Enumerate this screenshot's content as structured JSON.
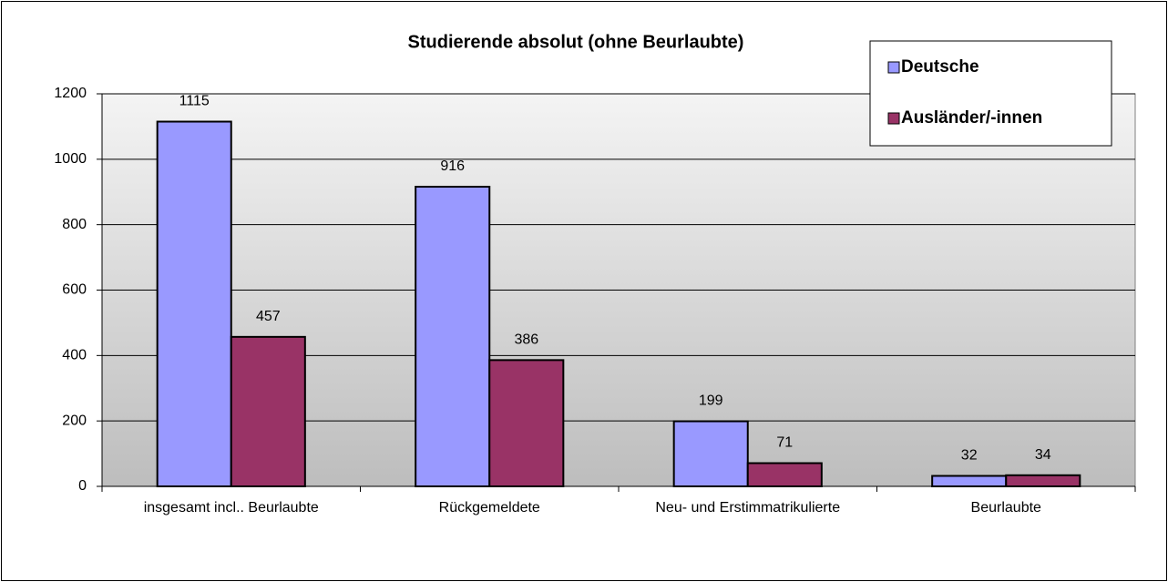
{
  "chart_data": {
    "type": "bar",
    "title": "Studierende absolut (ohne Beurlaubte)",
    "categories": [
      "insgesamt incl.. Beurlaubte",
      "Rückgemeldete",
      "Neu- und Erstimmatrikulierte",
      "Beurlaubte"
    ],
    "series": [
      {
        "name": "Deutsche",
        "color": "#9999ff",
        "values": [
          1115,
          916,
          199,
          32
        ]
      },
      {
        "name": "Ausländer/-innen",
        "color": "#993366",
        "values": [
          457,
          386,
          71,
          34
        ]
      }
    ],
    "ylim": [
      0,
      1200
    ],
    "yticks": [
      0,
      200,
      400,
      600,
      800,
      1000,
      1200
    ],
    "grid": true,
    "legend": "top-right"
  }
}
